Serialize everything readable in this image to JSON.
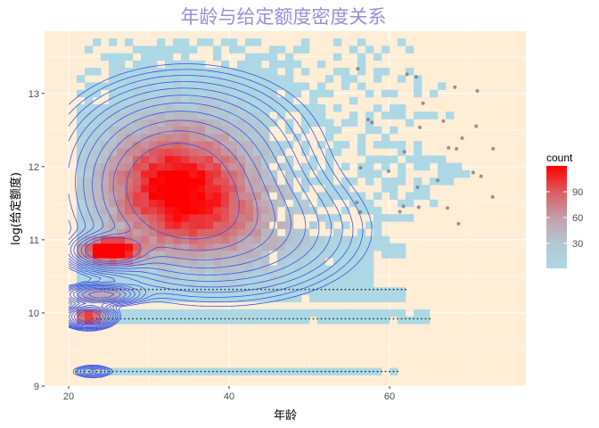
{
  "chart_data": {
    "type": "heatmap",
    "title": "年龄与给定额度密度关系",
    "xlabel": "年龄",
    "ylabel": "log(给定额度)",
    "xlim": [
      17,
      77
    ],
    "ylim": [
      9.0,
      13.85
    ],
    "x_ticks": [
      20,
      40,
      60
    ],
    "x_tick_labels": [
      "20",
      "40",
      "60"
    ],
    "y_ticks": [
      9,
      10,
      11,
      12,
      13
    ],
    "y_tick_labels": [
      "9",
      "10",
      "11",
      "12",
      "13"
    ],
    "panel_background": "#ffedd6",
    "grid": "on",
    "legend": {
      "title": "count",
      "position": "right",
      "range": [
        1,
        120
      ],
      "breaks": [
        30,
        60,
        90
      ],
      "break_labels": [
        "30",
        "60",
        "90"
      ],
      "low_color": "#add8e6",
      "high_color": "#ff0000"
    },
    "density_contours": {
      "color": "#3b55e0",
      "levels": 11,
      "note_centers": [
        [
          25,
          10.85
        ],
        [
          22.5,
          9.95
        ],
        [
          31,
          11.6
        ]
      ]
    },
    "bin_width_x": 1,
    "bin_height_y": 0.1
  }
}
